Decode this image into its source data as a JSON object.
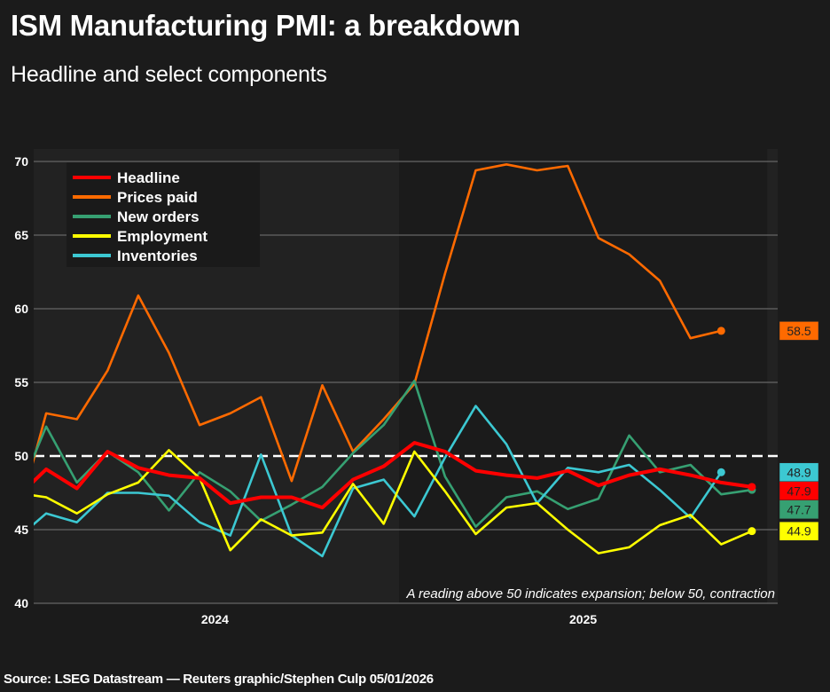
{
  "header": {
    "title": "ISM Manufacturing PMI: a breakdown",
    "subtitle": "Headline and select components"
  },
  "footer": {
    "source": "Source: LSEG Datastream — Reuters graphic/Stephen Culp 05/01/2026"
  },
  "chart_data": {
    "type": "line",
    "title": "ISM Manufacturing PMI: a breakdown",
    "subtitle": "Headline and select components",
    "xlabel": "",
    "ylabel": "",
    "ylim": [
      40,
      70
    ],
    "yticks": [
      40,
      45,
      50,
      55,
      60,
      65,
      70
    ],
    "grid": true,
    "legend_position": "top-left",
    "reference_line": {
      "value": 50,
      "style": "dashed",
      "color": "#ffffff"
    },
    "annotation": "A reading above 50 indicates expansion; below 50, contraction",
    "x": [
      "Dec 2023",
      "Jan 2024",
      "Feb 2024",
      "Mar 2024",
      "Apr 2024",
      "May 2024",
      "Jun 2024",
      "Jul 2024",
      "Aug 2024",
      "Sep 2024",
      "Oct 2024",
      "Nov 2024",
      "Dec 2024",
      "Jan 2025",
      "Feb 2025",
      "Mar 2025",
      "Apr 2025",
      "May 2025",
      "Jun 2025",
      "Jul 2025",
      "Aug 2025",
      "Sep 2025",
      "Oct 2025",
      "Nov 2025",
      "Dec 2025"
    ],
    "year_bands": [
      {
        "label": "2024",
        "start_index": 1,
        "end_index": 12,
        "shaded": true
      },
      {
        "label": "2025",
        "start_index": 13,
        "end_index": 24,
        "shaded": false
      },
      {
        "label": "",
        "start_index": 25,
        "end_index": 25,
        "shaded": true
      }
    ],
    "xtick_labels": [
      "2024",
      "2025"
    ],
    "series": [
      {
        "name": "Headline",
        "color": "#ff0000",
        "width": "thick",
        "values": [
          47.1,
          49.1,
          47.8,
          50.3,
          49.2,
          48.7,
          48.5,
          46.8,
          47.2,
          47.2,
          46.5,
          48.4,
          49.3,
          50.9,
          50.3,
          49.0,
          48.7,
          48.5,
          49.0,
          48.0,
          48.7,
          49.1,
          48.7,
          48.2,
          47.9
        ],
        "end_label": "47.9"
      },
      {
        "name": "Prices paid",
        "color": "#ff6a00",
        "width": "normal",
        "values": [
          45.2,
          52.9,
          52.5,
          55.8,
          60.9,
          57.0,
          52.1,
          52.9,
          54.0,
          48.3,
          54.8,
          50.3,
          52.5,
          54.9,
          62.4,
          69.4,
          69.8,
          69.4,
          69.7,
          64.8,
          63.7,
          61.9,
          58.0,
          58.5,
          null
        ],
        "end_label": "58.5"
      },
      {
        "name": "New orders",
        "color": "#36a072",
        "width": "normal",
        "values": [
          47.0,
          52.0,
          48.2,
          50.3,
          48.9,
          46.3,
          48.9,
          47.6,
          45.6,
          46.7,
          47.9,
          50.2,
          52.1,
          55.1,
          48.6,
          45.2,
          47.2,
          47.6,
          46.4,
          47.1,
          51.4,
          48.9,
          49.4,
          47.4,
          47.7
        ],
        "end_label": "47.7"
      },
      {
        "name": "Employment",
        "color": "#ffff00",
        "width": "normal",
        "values": [
          47.5,
          47.2,
          46.1,
          47.4,
          48.2,
          50.4,
          48.5,
          43.6,
          45.7,
          44.6,
          44.8,
          48.1,
          45.4,
          50.3,
          47.6,
          44.7,
          46.5,
          46.8,
          45.0,
          43.4,
          43.8,
          45.3,
          46.0,
          44.0,
          44.9
        ],
        "end_label": "44.9"
      },
      {
        "name": "Inventories",
        "color": "#3cc8d2",
        "width": "normal",
        "values": [
          44.3,
          46.1,
          45.5,
          47.5,
          47.5,
          47.3,
          45.5,
          44.6,
          50.1,
          44.6,
          43.2,
          47.8,
          48.4,
          45.9,
          49.9,
          53.4,
          50.8,
          46.8,
          49.2,
          48.9,
          49.4,
          47.7,
          45.8,
          48.9,
          null
        ],
        "end_label": "48.9"
      }
    ]
  }
}
